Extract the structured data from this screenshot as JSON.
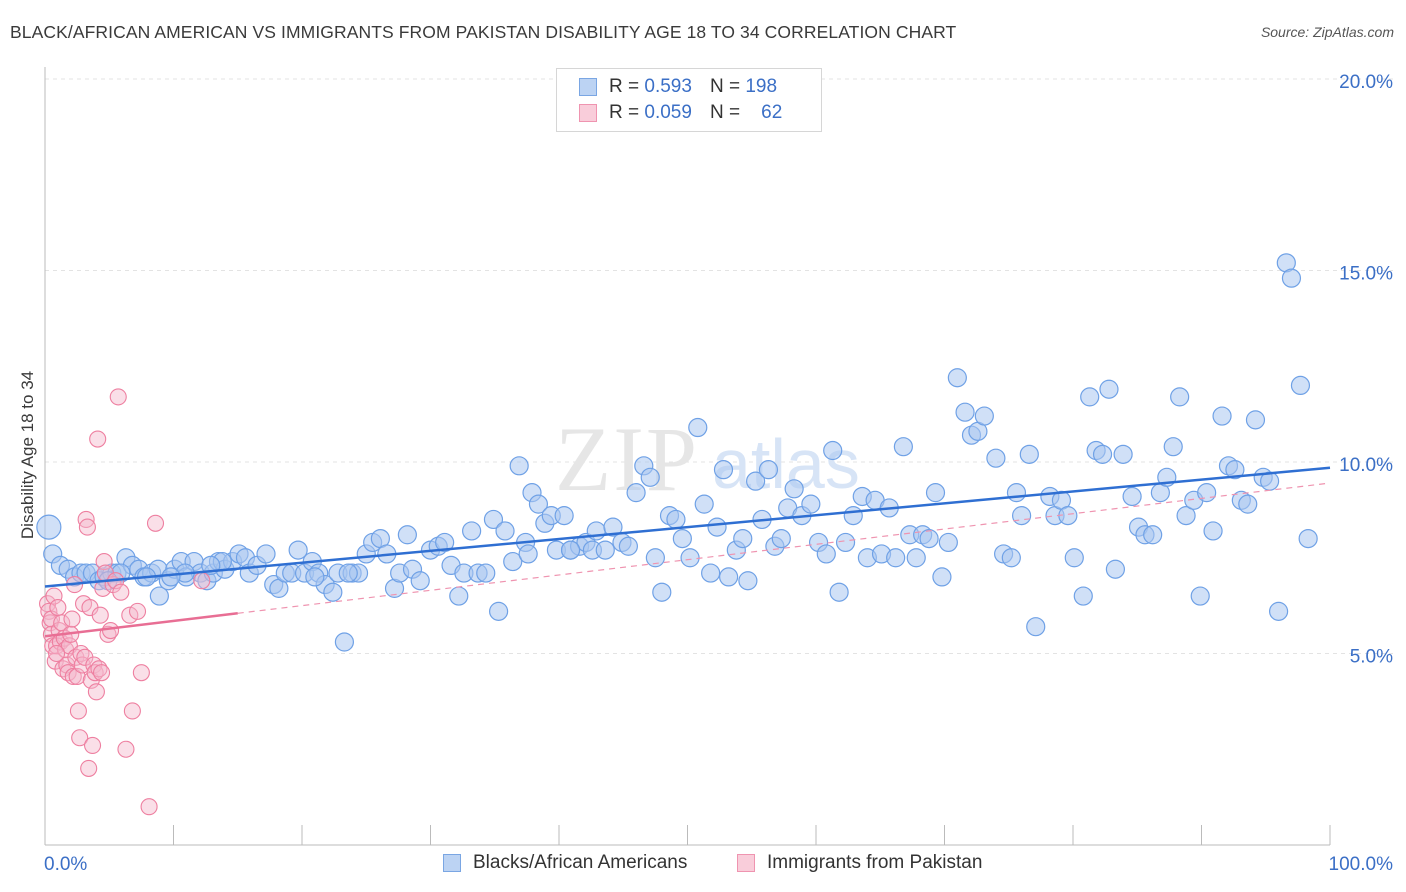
{
  "header": {
    "title": "BLACK/AFRICAN AMERICAN VS IMMIGRANTS FROM PAKISTAN DISABILITY AGE 18 TO 34 CORRELATION CHART",
    "source": "Source: ZipAtlas.com"
  },
  "watermark": {
    "zip": "ZIP",
    "atlas": "atlas"
  },
  "legend_top": {
    "rows": [
      {
        "r_label": "R =",
        "r_value": "0.593",
        "n_label": "N =",
        "n_value": "198",
        "color": "#a9c7f0"
      },
      {
        "r_label": "R =",
        "r_value": "0.059",
        "n_label": "N =",
        "n_value": "62",
        "color": "#f5b8cb"
      }
    ]
  },
  "legend_bottom": {
    "items": [
      {
        "label": "Blacks/African Americans",
        "color": "#a9c7f0"
      },
      {
        "label": "Immigrants from Pakistan",
        "color": "#f5b8cb"
      }
    ]
  },
  "chart_data": {
    "type": "scatter",
    "title": "BLACK/AFRICAN AMERICAN VS IMMIGRANTS FROM PAKISTAN DISABILITY AGE 18 TO 34 CORRELATION CHART",
    "xlabel": "",
    "ylabel": "Disability Age 18 to 34",
    "xlim": [
      0,
      100
    ],
    "ylim": [
      0,
      20
    ],
    "x_tick_labels": [
      "0.0%",
      "100.0%"
    ],
    "y_ticks": [
      5,
      10,
      15,
      20
    ],
    "y_tick_labels": [
      "5.0%",
      "10.0%",
      "15.0%",
      "20.0%"
    ],
    "grid": true,
    "legend_position": "top-center",
    "series": [
      {
        "name": "Blacks/African Americans",
        "color": "#6fa1e6",
        "fill": "#a9c7f0",
        "trend": {
          "x": [
            0,
            100
          ],
          "y": [
            6.75,
            9.85
          ]
        },
        "points": [
          [
            0.3,
            8.3
          ],
          [
            0.6,
            7.6
          ],
          [
            1.2,
            7.3
          ],
          [
            1.8,
            7.2
          ],
          [
            2.3,
            7.0
          ],
          [
            2.8,
            7.1
          ],
          [
            3.2,
            7.1
          ],
          [
            3.7,
            7.1
          ],
          [
            4.2,
            6.9
          ],
          [
            4.6,
            7.0
          ],
          [
            5.2,
            7.1
          ],
          [
            5.6,
            7.1
          ],
          [
            6.3,
            7.5
          ],
          [
            6.8,
            7.3
          ],
          [
            7.3,
            7.2
          ],
          [
            7.7,
            7.0
          ],
          [
            8.3,
            7.1
          ],
          [
            8.8,
            7.2
          ],
          [
            8.9,
            6.5
          ],
          [
            9.6,
            6.9
          ],
          [
            10.1,
            7.2
          ],
          [
            10.6,
            7.4
          ],
          [
            11.0,
            7.0
          ],
          [
            11.6,
            7.4
          ],
          [
            12.1,
            7.1
          ],
          [
            12.6,
            6.9
          ],
          [
            13.1,
            7.1
          ],
          [
            13.5,
            7.4
          ],
          [
            14.0,
            7.2
          ],
          [
            14.6,
            7.4
          ],
          [
            15.1,
            7.6
          ],
          [
            15.6,
            7.5
          ],
          [
            15.9,
            7.1
          ],
          [
            16.5,
            7.3
          ],
          [
            17.2,
            7.6
          ],
          [
            17.8,
            6.8
          ],
          [
            18.2,
            6.7
          ],
          [
            18.7,
            7.1
          ],
          [
            19.2,
            7.1
          ],
          [
            19.7,
            7.7
          ],
          [
            20.2,
            7.1
          ],
          [
            20.8,
            7.4
          ],
          [
            21.3,
            7.1
          ],
          [
            21.8,
            6.8
          ],
          [
            22.4,
            6.6
          ],
          [
            22.8,
            7.1
          ],
          [
            23.3,
            5.3
          ],
          [
            23.9,
            7.1
          ],
          [
            24.4,
            7.1
          ],
          [
            25.0,
            7.6
          ],
          [
            25.5,
            7.9
          ],
          [
            26.1,
            8.0
          ],
          [
            26.6,
            7.6
          ],
          [
            27.2,
            6.7
          ],
          [
            27.6,
            7.1
          ],
          [
            28.2,
            8.1
          ],
          [
            28.6,
            7.2
          ],
          [
            29.2,
            6.9
          ],
          [
            30.0,
            7.7
          ],
          [
            30.6,
            7.8
          ],
          [
            31.1,
            7.9
          ],
          [
            31.6,
            7.3
          ],
          [
            32.2,
            6.5
          ],
          [
            32.6,
            7.1
          ],
          [
            33.2,
            8.2
          ],
          [
            33.7,
            7.1
          ],
          [
            34.3,
            7.1
          ],
          [
            34.9,
            8.5
          ],
          [
            35.3,
            6.1
          ],
          [
            35.8,
            8.2
          ],
          [
            36.4,
            7.4
          ],
          [
            36.9,
            9.9
          ],
          [
            37.4,
            7.9
          ],
          [
            37.9,
            9.2
          ],
          [
            38.4,
            8.9
          ],
          [
            38.9,
            8.4
          ],
          [
            39.4,
            8.6
          ],
          [
            39.8,
            7.7
          ],
          [
            40.4,
            8.6
          ],
          [
            40.9,
            7.7
          ],
          [
            41.6,
            7.8
          ],
          [
            42.1,
            7.9
          ],
          [
            42.6,
            7.7
          ],
          [
            42.9,
            8.2
          ],
          [
            43.6,
            7.7
          ],
          [
            44.2,
            8.3
          ],
          [
            44.9,
            7.9
          ],
          [
            45.4,
            7.8
          ],
          [
            46.0,
            9.2
          ],
          [
            46.6,
            9.9
          ],
          [
            47.1,
            9.6
          ],
          [
            47.5,
            7.5
          ],
          [
            48.0,
            6.6
          ],
          [
            48.6,
            8.6
          ],
          [
            49.1,
            8.5
          ],
          [
            49.6,
            8.0
          ],
          [
            50.2,
            7.5
          ],
          [
            50.8,
            10.9
          ],
          [
            51.3,
            8.9
          ],
          [
            51.8,
            7.1
          ],
          [
            52.3,
            8.3
          ],
          [
            52.8,
            9.8
          ],
          [
            53.2,
            7.0
          ],
          [
            53.8,
            7.7
          ],
          [
            54.3,
            8.0
          ],
          [
            54.7,
            6.9
          ],
          [
            55.3,
            9.5
          ],
          [
            55.8,
            8.5
          ],
          [
            56.3,
            9.8
          ],
          [
            56.8,
            7.8
          ],
          [
            57.3,
            8.0
          ],
          [
            57.8,
            8.8
          ],
          [
            58.3,
            9.3
          ],
          [
            58.9,
            8.6
          ],
          [
            59.6,
            8.9
          ],
          [
            60.2,
            7.9
          ],
          [
            60.8,
            7.6
          ],
          [
            61.3,
            10.3
          ],
          [
            61.8,
            6.6
          ],
          [
            62.3,
            7.9
          ],
          [
            62.9,
            8.6
          ],
          [
            63.6,
            9.1
          ],
          [
            64.0,
            7.5
          ],
          [
            64.6,
            9.0
          ],
          [
            65.1,
            7.6
          ],
          [
            65.7,
            8.8
          ],
          [
            66.2,
            7.5
          ],
          [
            66.8,
            10.4
          ],
          [
            67.3,
            8.1
          ],
          [
            67.8,
            7.5
          ],
          [
            68.3,
            8.1
          ],
          [
            68.8,
            8.0
          ],
          [
            69.3,
            9.2
          ],
          [
            69.8,
            7.0
          ],
          [
            70.3,
            7.9
          ],
          [
            71.0,
            12.2
          ],
          [
            71.6,
            11.3
          ],
          [
            72.1,
            10.7
          ],
          [
            72.6,
            10.8
          ],
          [
            73.1,
            11.2
          ],
          [
            74.0,
            10.1
          ],
          [
            74.6,
            7.6
          ],
          [
            75.2,
            7.5
          ],
          [
            75.6,
            9.2
          ],
          [
            76.0,
            8.6
          ],
          [
            76.6,
            10.2
          ],
          [
            77.1,
            5.7
          ],
          [
            78.2,
            9.1
          ],
          [
            78.6,
            8.6
          ],
          [
            79.1,
            9.0
          ],
          [
            79.6,
            8.6
          ],
          [
            80.1,
            7.5
          ],
          [
            80.8,
            6.5
          ],
          [
            81.3,
            11.7
          ],
          [
            81.8,
            10.3
          ],
          [
            82.3,
            10.2
          ],
          [
            82.8,
            11.9
          ],
          [
            83.3,
            7.2
          ],
          [
            83.9,
            10.2
          ],
          [
            84.6,
            9.1
          ],
          [
            85.1,
            8.3
          ],
          [
            85.6,
            8.1
          ],
          [
            86.2,
            8.1
          ],
          [
            86.8,
            9.2
          ],
          [
            87.3,
            9.6
          ],
          [
            87.8,
            10.4
          ],
          [
            88.3,
            11.7
          ],
          [
            88.8,
            8.6
          ],
          [
            89.4,
            9.0
          ],
          [
            89.9,
            6.5
          ],
          [
            90.4,
            9.2
          ],
          [
            90.9,
            8.2
          ],
          [
            91.6,
            11.2
          ],
          [
            92.1,
            9.9
          ],
          [
            92.6,
            9.8
          ],
          [
            93.1,
            9.0
          ],
          [
            93.6,
            8.9
          ],
          [
            94.2,
            11.1
          ],
          [
            94.8,
            9.6
          ],
          [
            95.3,
            9.5
          ],
          [
            96.0,
            6.1
          ],
          [
            96.6,
            15.2
          ],
          [
            97.0,
            14.8
          ],
          [
            97.7,
            12.0
          ],
          [
            98.3,
            8.0
          ],
          [
            40.9,
            7.7
          ],
          [
            37.6,
            7.6
          ],
          [
            23.6,
            7.1
          ],
          [
            21.0,
            7.0
          ],
          [
            13.8,
            7.4
          ],
          [
            12.9,
            7.3
          ],
          [
            10.9,
            7.1
          ],
          [
            9.8,
            7.0
          ],
          [
            7.9,
            7.0
          ],
          [
            5.9,
            7.1
          ],
          [
            4.9,
            6.9
          ]
        ]
      },
      {
        "name": "Immigrants from Pakistan",
        "color": "#ee7fa0",
        "fill": "#f5b8cb",
        "trend": {
          "x": [
            0,
            15
          ],
          "y": [
            5.45,
            6.05
          ]
        },
        "trend_extended": {
          "x": [
            15,
            100
          ],
          "y": [
            6.05,
            9.45
          ]
        },
        "points": [
          [
            0.2,
            6.3
          ],
          [
            0.3,
            6.1
          ],
          [
            0.4,
            5.8
          ],
          [
            0.5,
            5.9
          ],
          [
            0.5,
            5.5
          ],
          [
            0.6,
            5.2
          ],
          [
            0.7,
            6.5
          ],
          [
            0.8,
            4.8
          ],
          [
            0.9,
            5.2
          ],
          [
            1.0,
            6.2
          ],
          [
            1.1,
            5.6
          ],
          [
            1.2,
            5.3
          ],
          [
            1.3,
            5.8
          ],
          [
            1.4,
            4.6
          ],
          [
            1.5,
            5.4
          ],
          [
            1.6,
            5.1
          ],
          [
            1.7,
            4.7
          ],
          [
            1.8,
            4.5
          ],
          [
            1.9,
            5.2
          ],
          [
            2.0,
            5.5
          ],
          [
            2.1,
            5.9
          ],
          [
            2.2,
            4.4
          ],
          [
            2.3,
            6.8
          ],
          [
            2.4,
            4.9
          ],
          [
            2.5,
            4.4
          ],
          [
            2.6,
            3.5
          ],
          [
            2.7,
            2.8
          ],
          [
            2.8,
            5.0
          ],
          [
            2.9,
            4.7
          ],
          [
            3.0,
            6.3
          ],
          [
            3.1,
            4.9
          ],
          [
            3.2,
            8.5
          ],
          [
            3.3,
            8.3
          ],
          [
            3.4,
            2.0
          ],
          [
            3.5,
            6.2
          ],
          [
            3.6,
            4.3
          ],
          [
            3.7,
            2.6
          ],
          [
            3.8,
            4.7
          ],
          [
            3.9,
            4.5
          ],
          [
            4.0,
            4.0
          ],
          [
            4.1,
            10.6
          ],
          [
            4.2,
            4.6
          ],
          [
            4.3,
            6.0
          ],
          [
            4.4,
            4.5
          ],
          [
            4.5,
            6.7
          ],
          [
            4.6,
            7.4
          ],
          [
            4.7,
            7.1
          ],
          [
            4.9,
            5.5
          ],
          [
            5.1,
            5.6
          ],
          [
            5.3,
            6.8
          ],
          [
            5.5,
            6.9
          ],
          [
            5.7,
            11.7
          ],
          [
            5.9,
            6.6
          ],
          [
            6.3,
            2.5
          ],
          [
            6.6,
            6.0
          ],
          [
            6.8,
            3.5
          ],
          [
            7.2,
            6.1
          ],
          [
            7.5,
            4.5
          ],
          [
            8.1,
            1.0
          ],
          [
            8.6,
            8.4
          ],
          [
            12.2,
            6.9
          ],
          [
            0.9,
            5.0
          ]
        ]
      }
    ]
  }
}
